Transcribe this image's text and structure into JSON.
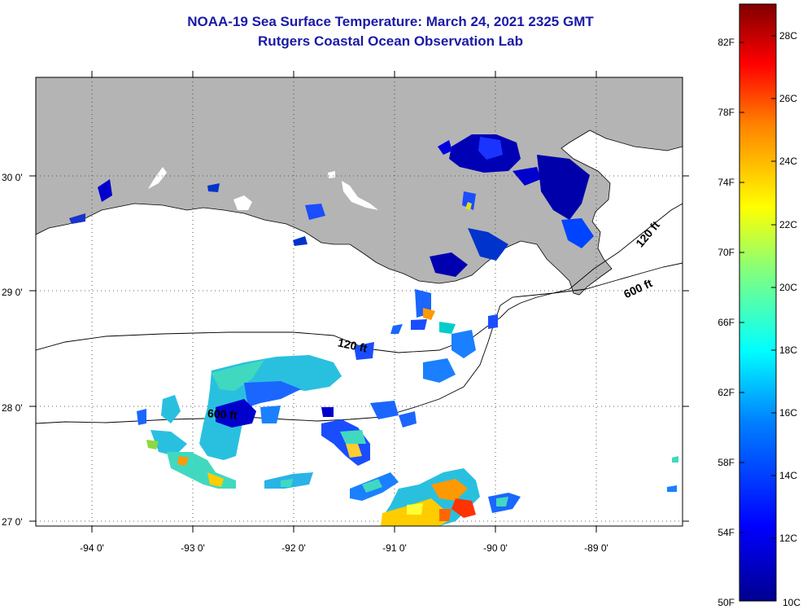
{
  "header": {
    "title": "NOAA-19 Sea Surface Temperature:  March 24, 2021 2325 GMT",
    "subtitle": "Rutgers Coastal Ocean Observation Lab"
  },
  "map": {
    "region": "Northern Gulf of Mexico / Louisiana coast",
    "lat_labels": [
      "30 0'",
      "29 0'",
      "28 0'",
      "27 0'"
    ],
    "lon_labels": [
      "-94 0'",
      "-93 0'",
      "-92 0'",
      "-91 0'",
      "-90 0'",
      "-89 0'"
    ],
    "lat_range": [
      26.95,
      30.85
    ],
    "lon_range": [
      -94.55,
      -88.0
    ],
    "contours": [
      {
        "label": "120 ft",
        "placements": 2
      },
      {
        "label": "600 ft",
        "placements": 2
      }
    ],
    "contour_labels": [
      "120 ft",
      "120 ft",
      "600 ft",
      "600 ft"
    ],
    "colors": {
      "land": "#b4b4b4",
      "water": "#ffffff",
      "coastline": "#000000",
      "title": "#1a1aa6"
    }
  },
  "colorbar": {
    "fahrenheit_ticks": [
      "82F",
      "78F",
      "74F",
      "70F",
      "66F",
      "62F",
      "58F",
      "54F",
      "50F"
    ],
    "celsius_ticks": [
      "28C",
      "26C",
      "24C",
      "22C",
      "20C",
      "18C",
      "16C",
      "14C",
      "12C",
      "10C"
    ],
    "range_c": [
      10,
      29
    ],
    "palette": [
      "#00008f",
      "#0000ff",
      "#0080ff",
      "#00ffff",
      "#80ff80",
      "#ffff00",
      "#ff8000",
      "#ff0000",
      "#800000"
    ]
  }
}
